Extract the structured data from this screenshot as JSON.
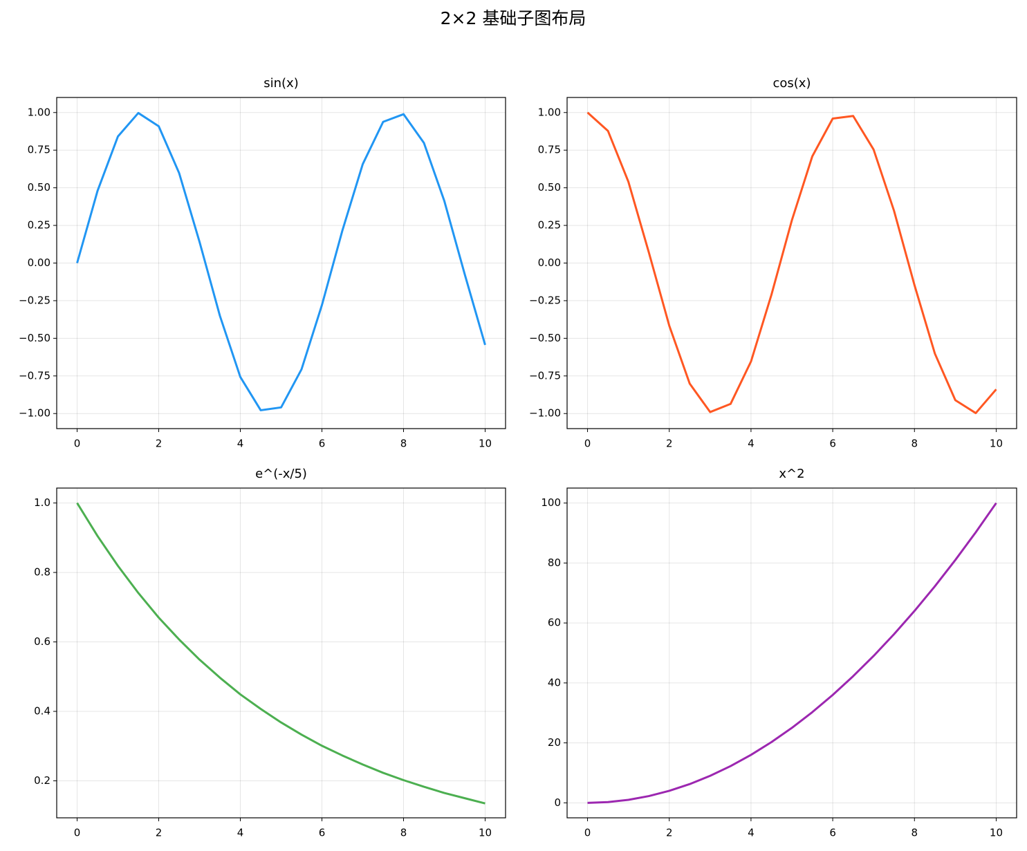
{
  "title": "2×2 基础子图布局",
  "chart_data": [
    {
      "type": "line",
      "title": "sin(x)",
      "color": "#2196f3",
      "grid": true,
      "x": [
        0,
        0.5,
        1,
        1.5,
        2,
        2.5,
        3,
        3.5,
        4,
        4.5,
        5,
        5.5,
        6,
        6.5,
        7,
        7.5,
        8,
        8.5,
        9,
        9.5,
        10
      ],
      "values": [
        0,
        0.479,
        0.841,
        0.997,
        0.909,
        0.598,
        0.141,
        -0.351,
        -0.757,
        -0.978,
        -0.959,
        -0.706,
        -0.279,
        0.215,
        0.657,
        0.938,
        0.989,
        0.798,
        0.412,
        -0.075,
        -0.544
      ],
      "xlim": [
        -0.5,
        10.5
      ],
      "xticks": [
        0,
        2,
        4,
        6,
        8,
        10
      ],
      "ylim": [
        -1.1,
        1.1
      ],
      "yticks": [
        {
          "value": -1,
          "label": "−1.00"
        },
        {
          "value": -0.75,
          "label": "−0.75"
        },
        {
          "value": -0.5,
          "label": "−0.50"
        },
        {
          "value": -0.25,
          "label": "−0.25"
        },
        {
          "value": 0,
          "label": "0.00"
        },
        {
          "value": 0.25,
          "label": "0.25"
        },
        {
          "value": 0.5,
          "label": "0.50"
        },
        {
          "value": 0.75,
          "label": "0.75"
        },
        {
          "value": 1,
          "label": "1.00"
        }
      ]
    },
    {
      "type": "line",
      "title": "cos(x)",
      "color": "#ff5722",
      "grid": true,
      "x": [
        0,
        0.5,
        1,
        1.5,
        2,
        2.5,
        3,
        3.5,
        4,
        4.5,
        5,
        5.5,
        6,
        6.5,
        7,
        7.5,
        8,
        8.5,
        9,
        9.5,
        10
      ],
      "values": [
        1,
        0.878,
        0.54,
        0.071,
        -0.416,
        -0.801,
        -0.99,
        -0.936,
        -0.654,
        -0.211,
        0.284,
        0.709,
        0.96,
        0.977,
        0.754,
        0.347,
        -0.146,
        -0.602,
        -0.911,
        -0.997,
        -0.839
      ],
      "xlim": [
        -0.5,
        10.5
      ],
      "xticks": [
        0,
        2,
        4,
        6,
        8,
        10
      ],
      "ylim": [
        -1.1,
        1.1
      ],
      "yticks": [
        {
          "value": -1,
          "label": "−1.00"
        },
        {
          "value": -0.75,
          "label": "−0.75"
        },
        {
          "value": -0.5,
          "label": "−0.50"
        },
        {
          "value": -0.25,
          "label": "−0.25"
        },
        {
          "value": 0,
          "label": "0.00"
        },
        {
          "value": 0.25,
          "label": "0.25"
        },
        {
          "value": 0.5,
          "label": "0.50"
        },
        {
          "value": 0.75,
          "label": "0.75"
        },
        {
          "value": 1,
          "label": "1.00"
        }
      ]
    },
    {
      "type": "line",
      "title": "e^(-x/5)",
      "color": "#4caf50",
      "grid": true,
      "x": [
        0,
        0.5,
        1,
        1.5,
        2,
        2.5,
        3,
        3.5,
        4,
        4.5,
        5,
        5.5,
        6,
        6.5,
        7,
        7.5,
        8,
        8.5,
        9,
        9.5,
        10
      ],
      "values": [
        1,
        0.905,
        0.819,
        0.741,
        0.67,
        0.607,
        0.549,
        0.497,
        0.449,
        0.407,
        0.368,
        0.333,
        0.301,
        0.273,
        0.247,
        0.223,
        0.202,
        0.183,
        0.165,
        0.15,
        0.135
      ],
      "xlim": [
        -0.5,
        10.5
      ],
      "xticks": [
        0,
        2,
        4,
        6,
        8,
        10
      ],
      "ylim": [
        0.0935,
        1.043
      ],
      "yticks": [
        0.2,
        0.4,
        0.6,
        0.8,
        {
          "value": 1,
          "label": "1.0"
        }
      ]
    },
    {
      "type": "line",
      "title": "x^2",
      "color": "#9c27b0",
      "grid": true,
      "x": [
        0,
        0.5,
        1,
        1.5,
        2,
        2.5,
        3,
        3.5,
        4,
        4.5,
        5,
        5.5,
        6,
        6.5,
        7,
        7.5,
        8,
        8.5,
        9,
        9.5,
        10
      ],
      "values": [
        0,
        0.25,
        1,
        2.25,
        4,
        6.25,
        9,
        12.25,
        16,
        20.25,
        25,
        30.25,
        36,
        42.25,
        49,
        56.25,
        64,
        72.25,
        81,
        90.25,
        100
      ],
      "xlim": [
        -0.5,
        10.5
      ],
      "xticks": [
        0,
        2,
        4,
        6,
        8,
        10
      ],
      "ylim": [
        -5,
        105
      ],
      "yticks": [
        0,
        20,
        40,
        60,
        80,
        100
      ]
    }
  ]
}
